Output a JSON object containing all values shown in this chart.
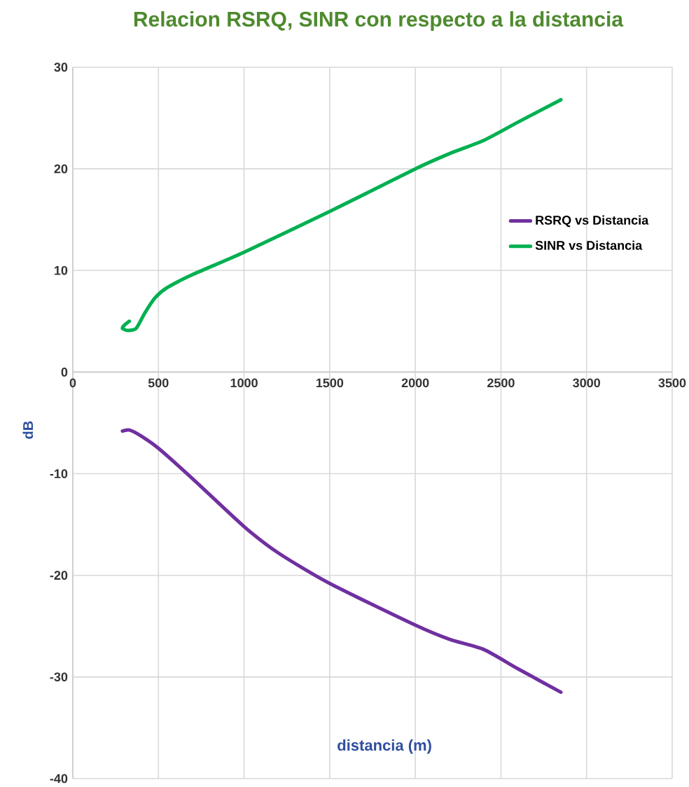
{
  "chart_data": {
    "type": "line",
    "title": "Relacion RSRQ, SINR con respecto a la distancia",
    "xlabel": "distancia (m)",
    "ylabel": "dB",
    "xlim": [
      0,
      3500
    ],
    "xticks": [
      0,
      500,
      1000,
      1500,
      2000,
      2500,
      3000,
      3500
    ],
    "ylim": [
      -40,
      30
    ],
    "yticks": [
      -40,
      -30,
      -20,
      -10,
      0,
      10,
      20,
      30
    ],
    "grid": true,
    "legend": "right",
    "line_style": "solid",
    "marker": "none",
    "series": [
      {
        "name": "RSRQ vs Distancia",
        "color": "#7030a0",
        "x": [
          290,
          330,
          400,
          500,
          700,
          1000,
          1200,
          1500,
          2000,
          2200,
          2400,
          2600,
          2850
        ],
        "values": [
          -5.8,
          -5.7,
          -6.3,
          -7.5,
          -10.5,
          -15.2,
          -17.8,
          -20.8,
          -24.9,
          -26.3,
          -27.3,
          -29.2,
          -31.5
        ]
      },
      {
        "name": "SINR vs Distancia",
        "color": "#00b050",
        "x": [
          330,
          300,
          290,
          320,
          370,
          420,
          480,
          550,
          700,
          1000,
          1500,
          2000,
          2200,
          2400,
          2600,
          2850
        ],
        "values": [
          5.0,
          4.6,
          4.3,
          4.1,
          4.3,
          5.8,
          7.3,
          8.3,
          9.6,
          11.8,
          15.8,
          20.0,
          21.5,
          22.8,
          24.6,
          26.8
        ]
      }
    ]
  }
}
